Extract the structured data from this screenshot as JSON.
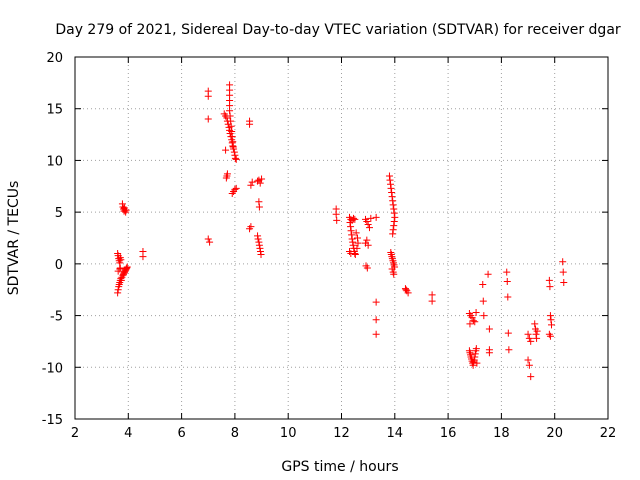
{
  "chart_data": {
    "type": "scatter",
    "title": "Day 279 of 2021, Sidereal Day-to-day VTEC variation (SDTVAR) for receiver dgar",
    "xlabel": "GPS time / hours",
    "ylabel": "SDTVAR / TECUs",
    "xlim": [
      2,
      22
    ],
    "ylim": [
      -15,
      20
    ],
    "xticks": [
      2,
      4,
      6,
      8,
      10,
      12,
      14,
      16,
      18,
      20,
      22
    ],
    "yticks": [
      -15,
      -10,
      -5,
      0,
      5,
      10,
      15,
      20
    ],
    "grid": true,
    "marker": "+",
    "color": "#ff0000",
    "series": [
      {
        "name": "SDTVAR",
        "points": [
          [
            3.6,
            1.0
          ],
          [
            3.62,
            0.8
          ],
          [
            3.64,
            0.5
          ],
          [
            3.66,
            0.3
          ],
          [
            3.68,
            0.1
          ],
          [
            3.7,
            0.6
          ],
          [
            3.72,
            0.4
          ],
          [
            3.68,
            -0.5
          ],
          [
            3.62,
            -0.7
          ],
          [
            3.7,
            -0.4
          ],
          [
            3.6,
            -2.8
          ],
          [
            3.62,
            -2.5
          ],
          [
            3.64,
            -2.2
          ],
          [
            3.66,
            -2.0
          ],
          [
            3.68,
            -1.8
          ],
          [
            3.7,
            -1.6
          ],
          [
            3.72,
            -1.4
          ],
          [
            3.74,
            -1.6
          ],
          [
            3.76,
            -1.3
          ],
          [
            3.8,
            -1.1
          ],
          [
            3.82,
            -1.0
          ],
          [
            3.84,
            -0.9
          ],
          [
            3.86,
            -0.8
          ],
          [
            3.88,
            -0.7
          ],
          [
            3.9,
            -0.6
          ],
          [
            3.92,
            -0.5
          ],
          [
            3.94,
            -0.4
          ],
          [
            3.96,
            -0.3
          ],
          [
            3.78,
            5.8
          ],
          [
            3.8,
            5.5
          ],
          [
            3.82,
            5.3
          ],
          [
            3.84,
            5.1
          ],
          [
            3.86,
            5.4
          ],
          [
            3.88,
            5.2
          ],
          [
            3.9,
            5.0
          ],
          [
            3.92,
            5.2
          ],
          [
            4.55,
            1.2
          ],
          [
            4.55,
            0.7
          ],
          [
            7.0,
            16.7
          ],
          [
            7.0,
            16.2
          ],
          [
            7.0,
            14.0
          ],
          [
            7.0,
            2.4
          ],
          [
            7.05,
            2.1
          ],
          [
            7.6,
            14.5
          ],
          [
            7.65,
            14.3
          ],
          [
            7.7,
            14.1
          ],
          [
            7.72,
            13.8
          ],
          [
            7.75,
            13.5
          ],
          [
            7.78,
            13.2
          ],
          [
            7.8,
            12.9
          ],
          [
            7.82,
            12.6
          ],
          [
            7.85,
            12.3
          ],
          [
            7.88,
            12.0
          ],
          [
            7.9,
            11.7
          ],
          [
            7.92,
            11.4
          ],
          [
            7.95,
            11.1
          ],
          [
            7.98,
            10.8
          ],
          [
            8.0,
            10.5
          ],
          [
            8.02,
            10.2
          ],
          [
            8.05,
            10.1
          ],
          [
            7.8,
            17.3
          ],
          [
            7.8,
            16.8
          ],
          [
            7.8,
            16.3
          ],
          [
            7.8,
            15.8
          ],
          [
            7.8,
            15.3
          ],
          [
            7.8,
            14.8
          ],
          [
            7.82,
            14.3
          ],
          [
            7.84,
            13.8
          ],
          [
            7.86,
            13.3
          ],
          [
            7.88,
            12.8
          ],
          [
            7.9,
            12.3
          ],
          [
            7.92,
            11.8
          ],
          [
            7.94,
            11.3
          ],
          [
            7.65,
            11.0
          ],
          [
            7.7,
            8.5
          ],
          [
            7.72,
            8.7
          ],
          [
            7.68,
            8.3
          ],
          [
            7.9,
            6.8
          ],
          [
            7.95,
            7.0
          ],
          [
            8.0,
            7.2
          ],
          [
            8.05,
            7.3
          ],
          [
            8.55,
            13.8
          ],
          [
            8.55,
            13.5
          ],
          [
            8.6,
            3.6
          ],
          [
            8.55,
            3.4
          ],
          [
            8.6,
            7.6
          ],
          [
            8.65,
            7.9
          ],
          [
            8.85,
            8.0
          ],
          [
            8.9,
            8.1
          ],
          [
            8.95,
            7.8
          ],
          [
            9.0,
            8.2
          ],
          [
            8.9,
            6.0
          ],
          [
            8.92,
            5.5
          ],
          [
            8.85,
            2.7
          ],
          [
            8.87,
            2.4
          ],
          [
            8.9,
            2.1
          ],
          [
            8.92,
            1.8
          ],
          [
            8.94,
            1.5
          ],
          [
            8.96,
            1.2
          ],
          [
            8.98,
            0.9
          ],
          [
            11.8,
            5.3
          ],
          [
            11.8,
            4.8
          ],
          [
            11.82,
            4.2
          ],
          [
            12.3,
            4.5
          ],
          [
            12.32,
            4.0
          ],
          [
            12.34,
            3.6
          ],
          [
            12.36,
            3.2
          ],
          [
            12.38,
            2.8
          ],
          [
            12.4,
            2.4
          ],
          [
            12.42,
            2.1
          ],
          [
            12.44,
            1.8
          ],
          [
            12.46,
            1.5
          ],
          [
            12.48,
            1.2
          ],
          [
            12.5,
            1.0
          ],
          [
            12.52,
            0.9
          ],
          [
            12.35,
            4.3
          ],
          [
            12.4,
            4.2
          ],
          [
            12.45,
            4.4
          ],
          [
            12.5,
            4.3
          ],
          [
            12.55,
            3.0
          ],
          [
            12.6,
            2.5
          ],
          [
            12.62,
            2.0
          ],
          [
            12.58,
            1.5
          ],
          [
            12.3,
            1.2
          ],
          [
            12.35,
            1.0
          ],
          [
            12.9,
            4.3
          ],
          [
            12.95,
            4.1
          ],
          [
            13.0,
            3.8
          ],
          [
            13.05,
            3.5
          ],
          [
            13.1,
            4.4
          ],
          [
            12.9,
            2.0
          ],
          [
            12.95,
            2.3
          ],
          [
            13.0,
            1.8
          ],
          [
            12.92,
            -0.2
          ],
          [
            12.97,
            -0.4
          ],
          [
            13.3,
            4.5
          ],
          [
            13.3,
            -3.7
          ],
          [
            13.3,
            -5.4
          ],
          [
            13.3,
            -6.8
          ],
          [
            13.8,
            8.5
          ],
          [
            13.82,
            8.1
          ],
          [
            13.84,
            7.7
          ],
          [
            13.86,
            7.3
          ],
          [
            13.88,
            6.9
          ],
          [
            13.9,
            6.5
          ],
          [
            13.92,
            6.1
          ],
          [
            13.94,
            5.7
          ],
          [
            13.96,
            5.3
          ],
          [
            13.98,
            4.9
          ],
          [
            14.0,
            4.5
          ],
          [
            13.98,
            4.1
          ],
          [
            13.96,
            3.7
          ],
          [
            13.94,
            3.3
          ],
          [
            13.92,
            2.9
          ],
          [
            13.85,
            1.1
          ],
          [
            13.87,
            0.9
          ],
          [
            13.89,
            0.7
          ],
          [
            13.91,
            0.5
          ],
          [
            13.93,
            0.3
          ],
          [
            13.95,
            0.1
          ],
          [
            13.97,
            -0.1
          ],
          [
            13.99,
            -0.3
          ],
          [
            13.9,
            -0.5
          ],
          [
            13.94,
            -0.8
          ],
          [
            13.96,
            -1.0
          ],
          [
            14.4,
            -2.4
          ],
          [
            14.45,
            -2.6
          ],
          [
            14.5,
            -2.8
          ],
          [
            14.42,
            -2.5
          ],
          [
            15.4,
            -3.0
          ],
          [
            15.4,
            -3.6
          ],
          [
            16.8,
            -4.8
          ],
          [
            16.85,
            -5.0
          ],
          [
            16.9,
            -5.2
          ],
          [
            16.95,
            -5.5
          ],
          [
            17.0,
            -5.6
          ],
          [
            16.82,
            -5.8
          ],
          [
            17.05,
            -4.7
          ],
          [
            16.8,
            -8.4
          ],
          [
            16.82,
            -8.6
          ],
          [
            16.84,
            -8.8
          ],
          [
            16.86,
            -9.0
          ],
          [
            16.88,
            -9.2
          ],
          [
            16.9,
            -9.4
          ],
          [
            16.92,
            -9.6
          ],
          [
            16.94,
            -9.8
          ],
          [
            16.96,
            -9.5
          ],
          [
            16.98,
            -9.3
          ],
          [
            17.0,
            -9.0
          ],
          [
            17.02,
            -8.7
          ],
          [
            17.04,
            -8.4
          ],
          [
            17.06,
            -8.2
          ],
          [
            17.08,
            -9.6
          ],
          [
            17.3,
            -2.0
          ],
          [
            17.32,
            -3.6
          ],
          [
            17.34,
            -5.0
          ],
          [
            17.5,
            -1.0
          ],
          [
            17.55,
            -6.3
          ],
          [
            17.55,
            -8.3
          ],
          [
            17.55,
            -8.6
          ],
          [
            18.2,
            -0.8
          ],
          [
            18.22,
            -1.7
          ],
          [
            18.24,
            -3.2
          ],
          [
            18.26,
            -6.7
          ],
          [
            18.28,
            -8.3
          ],
          [
            19.0,
            -6.8
          ],
          [
            19.05,
            -7.2
          ],
          [
            19.1,
            -7.5
          ],
          [
            19.0,
            -9.3
          ],
          [
            19.05,
            -9.8
          ],
          [
            19.1,
            -10.9
          ],
          [
            19.25,
            -5.8
          ],
          [
            19.28,
            -6.3
          ],
          [
            19.3,
            -6.8
          ],
          [
            19.32,
            -7.2
          ],
          [
            19.34,
            -6.5
          ],
          [
            19.8,
            -1.6
          ],
          [
            19.82,
            -2.2
          ],
          [
            19.84,
            -5.0
          ],
          [
            19.86,
            -5.4
          ],
          [
            19.88,
            -5.9
          ],
          [
            19.8,
            -6.8
          ],
          [
            19.84,
            -7.0
          ],
          [
            20.3,
            0.2
          ],
          [
            20.32,
            -0.8
          ],
          [
            20.34,
            -1.8
          ]
        ]
      }
    ]
  }
}
